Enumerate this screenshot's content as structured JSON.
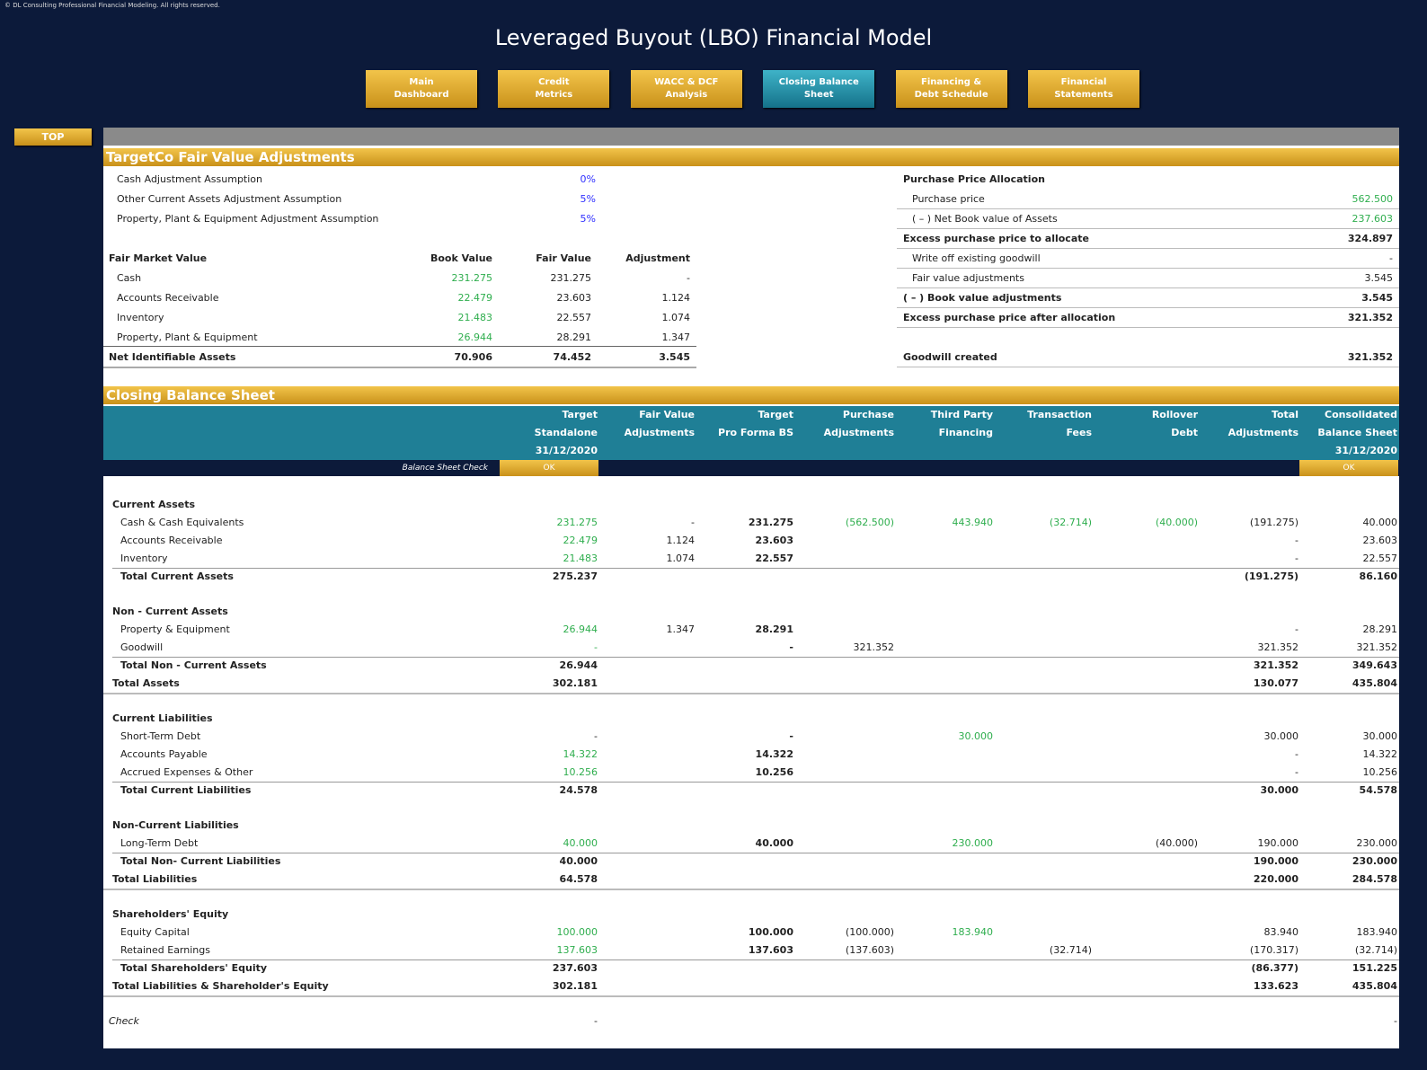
{
  "copyright": "© DL Consulting Professional Financial Modeling. All rights reserved.",
  "title": "Leveraged Buyout (LBO) Financial Model",
  "nav": [
    [
      "Main",
      "Dashboard"
    ],
    [
      "Credit",
      "Metrics"
    ],
    [
      "WACC & DCF",
      "Analysis"
    ],
    [
      "Closing Balance",
      "Sheet"
    ],
    [
      "Financing &",
      "Debt Schedule"
    ],
    [
      "Financial",
      "Statements"
    ]
  ],
  "nav_active": 3,
  "top_button": "TOP",
  "input_color": "#2fae4e",
  "assumption_color": "#3030ff",
  "fair_value": {
    "title": "TargetCo Fair Value Adjustments",
    "assumptions": [
      {
        "label": "Cash Adjustment Assumption",
        "value": "0%"
      },
      {
        "label": "Other Current Assets Adjustment Assumption",
        "value": "5%"
      },
      {
        "label": "Property, Plant & Equipment Adjustment Assumption",
        "value": "5%"
      }
    ],
    "header": [
      "Fair Market Value",
      "Book Value",
      "Fair Value",
      "Adjustment"
    ],
    "rows": [
      {
        "label": "Cash",
        "values": [
          "231.275",
          "231.275",
          "-"
        ],
        "green": [
          0
        ]
      },
      {
        "label": "Accounts Receivable",
        "values": [
          "22.479",
          "23.603",
          "1.124"
        ],
        "green": [
          0
        ]
      },
      {
        "label": "Inventory",
        "values": [
          "21.483",
          "22.557",
          "1.074"
        ],
        "green": [
          0
        ]
      },
      {
        "label": "Property, Plant & Equipment",
        "values": [
          "26.944",
          "28.291",
          "1.347"
        ],
        "green": [
          0
        ]
      }
    ],
    "total": {
      "label": "Net Identifiable Assets",
      "values": [
        "70.906",
        "74.452",
        "3.545"
      ]
    }
  },
  "ppa": {
    "title": "Purchase Price Allocation",
    "rows": [
      {
        "label": "Purchase price",
        "value": "562.500",
        "bold": false,
        "green": true
      },
      {
        "label": "( – ) Net Book value of Assets",
        "value": "237.603",
        "bold": false,
        "green": true
      },
      {
        "label": "Excess purchase price to allocate",
        "value": "324.897",
        "bold": true,
        "green": false
      },
      {
        "label": "Write off existing goodwill",
        "value": "-",
        "bold": false,
        "green": false
      },
      {
        "label": "Fair value adjustments",
        "value": "3.545",
        "bold": false,
        "green": false
      },
      {
        "label": "( – ) Book value adjustments",
        "value": "3.545",
        "bold": true,
        "green": false
      },
      {
        "label": "Excess purchase price after allocation",
        "value": "321.352",
        "bold": true,
        "green": false
      },
      {
        "label": "Goodwill created",
        "value": "321.352",
        "bold": true,
        "green": false
      }
    ]
  },
  "closing": {
    "title": "Closing Balance Sheet",
    "headers": [
      [
        "Target",
        "Standalone",
        "31/12/2020"
      ],
      [
        "Fair Value",
        "Adjustments"
      ],
      [
        "Target",
        "Pro Forma BS"
      ],
      [
        "Purchase",
        "Adjustments"
      ],
      [
        "Third Party",
        "Financing"
      ],
      [
        "Transaction",
        "Fees"
      ],
      [
        "Rollover",
        "Debt"
      ],
      [
        "Total",
        "Adjustments"
      ],
      [
        "Consolidated",
        "Balance Sheet",
        "31/12/2020"
      ]
    ],
    "check_label": "Balance Sheet Check",
    "check_status": [
      "OK",
      "OK"
    ],
    "rows": [
      {
        "kind": "section",
        "label": "Current Assets"
      },
      {
        "kind": "item",
        "label": "Cash & Cash Equivalents",
        "values": [
          "231.275",
          "-",
          "231.275",
          "(562.500)",
          "443.940",
          "(32.714)",
          "(40.000)",
          "(191.275)",
          "40.000"
        ],
        "green": [
          0,
          3,
          4,
          5,
          6
        ]
      },
      {
        "kind": "item",
        "label": "Accounts Receivable",
        "values": [
          "22.479",
          "1.124",
          "23.603",
          null,
          null,
          null,
          null,
          "-",
          "23.603"
        ],
        "green": [
          0
        ]
      },
      {
        "kind": "item",
        "label": "Inventory",
        "values": [
          "21.483",
          "1.074",
          "22.557",
          null,
          null,
          null,
          null,
          "-",
          "22.557"
        ],
        "green": [
          0
        ]
      },
      {
        "kind": "total",
        "label": "Total Current Assets",
        "values": [
          "275.237",
          null,
          null,
          null,
          null,
          null,
          null,
          "(191.275)",
          "86.160"
        ]
      },
      {
        "kind": "section",
        "label": "Non - Current Assets"
      },
      {
        "kind": "item",
        "label": "Property & Equipment",
        "values": [
          "26.944",
          "1.347",
          "28.291",
          null,
          null,
          null,
          null,
          "-",
          "28.291"
        ],
        "green": [
          0
        ]
      },
      {
        "kind": "item",
        "label": "Goodwill",
        "values": [
          "-",
          null,
          "-",
          "321.352",
          null,
          null,
          null,
          "321.352",
          "321.352"
        ],
        "green": [
          0
        ]
      },
      {
        "kind": "total",
        "label": "Total Non - Current Assets",
        "values": [
          "26.944",
          null,
          null,
          null,
          null,
          null,
          null,
          "321.352",
          "349.643"
        ]
      },
      {
        "kind": "grand",
        "label": "Total Assets",
        "values": [
          "302.181",
          null,
          null,
          null,
          null,
          null,
          null,
          "130.077",
          "435.804"
        ]
      },
      {
        "kind": "section",
        "label": "Current Liabilities"
      },
      {
        "kind": "item",
        "label": "Short-Term Debt",
        "values": [
          "-",
          null,
          "-",
          null,
          "30.000",
          null,
          null,
          "30.000",
          "30.000"
        ],
        "green": [
          4
        ]
      },
      {
        "kind": "item",
        "label": "Accounts Payable",
        "values": [
          "14.322",
          null,
          "14.322",
          null,
          null,
          null,
          null,
          "-",
          "14.322"
        ],
        "green": [
          0
        ]
      },
      {
        "kind": "item",
        "label": "Accrued Expenses & Other",
        "values": [
          "10.256",
          null,
          "10.256",
          null,
          null,
          null,
          null,
          "-",
          "10.256"
        ],
        "green": [
          0
        ]
      },
      {
        "kind": "total",
        "label": "Total Current Liabilities",
        "values": [
          "24.578",
          null,
          null,
          null,
          null,
          null,
          null,
          "30.000",
          "54.578"
        ]
      },
      {
        "kind": "section",
        "label": "Non-Current Liabilities"
      },
      {
        "kind": "item",
        "label": "Long-Term Debt",
        "values": [
          "40.000",
          null,
          "40.000",
          null,
          "230.000",
          null,
          "(40.000)",
          "190.000",
          "230.000"
        ],
        "green": [
          0,
          4
        ]
      },
      {
        "kind": "total",
        "label": "Total Non- Current Liabilities",
        "values": [
          "40.000",
          null,
          null,
          null,
          null,
          null,
          null,
          "190.000",
          "230.000"
        ]
      },
      {
        "kind": "grand",
        "label": "Total Liabilities",
        "values": [
          "64.578",
          null,
          null,
          null,
          null,
          null,
          null,
          "220.000",
          "284.578"
        ]
      },
      {
        "kind": "section",
        "label": "Shareholders' Equity"
      },
      {
        "kind": "item",
        "label": "Equity Capital",
        "values": [
          "100.000",
          null,
          "100.000",
          "(100.000)",
          "183.940",
          null,
          null,
          "83.940",
          "183.940"
        ],
        "green": [
          0,
          4
        ]
      },
      {
        "kind": "item",
        "label": "Retained Earnings",
        "values": [
          "137.603",
          null,
          "137.603",
          "(137.603)",
          null,
          "(32.714)",
          null,
          "(170.317)",
          "(32.714)"
        ],
        "green": [
          0
        ]
      },
      {
        "kind": "total",
        "label": "Total Shareholders' Equity",
        "values": [
          "237.603",
          null,
          null,
          null,
          null,
          null,
          null,
          "(86.377)",
          "151.225"
        ]
      },
      {
        "kind": "grand",
        "label": "Total Liabilities & Shareholder's Equity",
        "values": [
          "302.181",
          null,
          null,
          null,
          null,
          null,
          null,
          "133.623",
          "435.804"
        ]
      },
      {
        "kind": "check",
        "label": "Check",
        "values": [
          "-",
          null,
          null,
          null,
          null,
          null,
          null,
          null,
          "-"
        ]
      }
    ]
  }
}
